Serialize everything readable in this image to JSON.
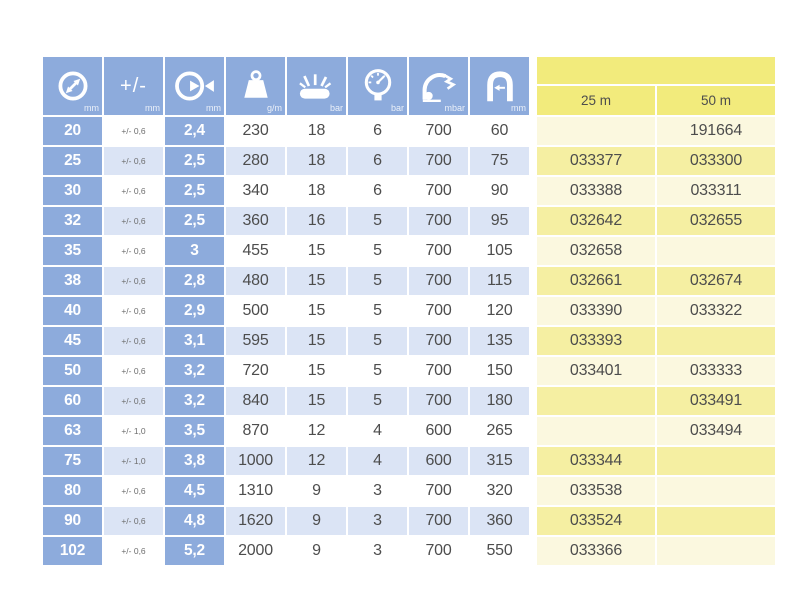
{
  "table": {
    "header": {
      "columns": [
        {
          "name": "inner-diameter",
          "unit": "mm"
        },
        {
          "name": "tolerance",
          "label": "+/-",
          "unit": "mm"
        },
        {
          "name": "wall-thickness",
          "unit": "mm"
        },
        {
          "name": "weight",
          "unit": "g/m"
        },
        {
          "name": "burst-pressure",
          "unit": "bar"
        },
        {
          "name": "working-pressure",
          "unit": "bar"
        },
        {
          "name": "vacuum",
          "unit": "mbar"
        },
        {
          "name": "bend-radius",
          "unit": "mm"
        }
      ],
      "length_columns": [
        "25 m",
        "50 m"
      ]
    },
    "rows": [
      {
        "id": "20",
        "tolerance": "+/- 0,6",
        "wall": "2,4",
        "weight": "230",
        "burst": "18",
        "pressure": "6",
        "vacuum": "700",
        "bend": "60",
        "code_25m": "",
        "code_50m": "191664"
      },
      {
        "id": "25",
        "tolerance": "+/- 0,6",
        "wall": "2,5",
        "weight": "280",
        "burst": "18",
        "pressure": "6",
        "vacuum": "700",
        "bend": "75",
        "code_25m": "033377",
        "code_50m": "033300"
      },
      {
        "id": "30",
        "tolerance": "+/- 0,6",
        "wall": "2,5",
        "weight": "340",
        "burst": "18",
        "pressure": "6",
        "vacuum": "700",
        "bend": "90",
        "code_25m": "033388",
        "code_50m": "033311"
      },
      {
        "id": "32",
        "tolerance": "+/- 0,6",
        "wall": "2,5",
        "weight": "360",
        "burst": "16",
        "pressure": "5",
        "vacuum": "700",
        "bend": "95",
        "code_25m": "032642",
        "code_50m": "032655"
      },
      {
        "id": "35",
        "tolerance": "+/- 0,6",
        "wall": "3",
        "weight": "455",
        "burst": "15",
        "pressure": "5",
        "vacuum": "700",
        "bend": "105",
        "code_25m": "032658",
        "code_50m": ""
      },
      {
        "id": "38",
        "tolerance": "+/- 0,6",
        "wall": "2,8",
        "weight": "480",
        "burst": "15",
        "pressure": "5",
        "vacuum": "700",
        "bend": "115",
        "code_25m": "032661",
        "code_50m": "032674"
      },
      {
        "id": "40",
        "tolerance": "+/- 0,6",
        "wall": "2,9",
        "weight": "500",
        "burst": "15",
        "pressure": "5",
        "vacuum": "700",
        "bend": "120",
        "code_25m": "033390",
        "code_50m": "033322"
      },
      {
        "id": "45",
        "tolerance": "+/- 0,6",
        "wall": "3,1",
        "weight": "595",
        "burst": "15",
        "pressure": "5",
        "vacuum": "700",
        "bend": "135",
        "code_25m": "033393",
        "code_50m": ""
      },
      {
        "id": "50",
        "tolerance": "+/- 0,6",
        "wall": "3,2",
        "weight": "720",
        "burst": "15",
        "pressure": "5",
        "vacuum": "700",
        "bend": "150",
        "code_25m": "033401",
        "code_50m": "033333"
      },
      {
        "id": "60",
        "tolerance": "+/- 0,6",
        "wall": "3,2",
        "weight": "840",
        "burst": "15",
        "pressure": "5",
        "vacuum": "700",
        "bend": "180",
        "code_25m": "",
        "code_50m": "033491"
      },
      {
        "id": "63",
        "tolerance": "+/- 1,0",
        "wall": "3,5",
        "weight": "870",
        "burst": "12",
        "pressure": "4",
        "vacuum": "600",
        "bend": "265",
        "code_25m": "",
        "code_50m": "033494"
      },
      {
        "id": "75",
        "tolerance": "+/- 1,0",
        "wall": "3,8",
        "weight": "1000",
        "burst": "12",
        "pressure": "4",
        "vacuum": "600",
        "bend": "315",
        "code_25m": "033344",
        "code_50m": ""
      },
      {
        "id": "80",
        "tolerance": "+/- 0,6",
        "wall": "4,5",
        "weight": "1310",
        "burst": "9",
        "pressure": "3",
        "vacuum": "700",
        "bend": "320",
        "code_25m": "033538",
        "code_50m": ""
      },
      {
        "id": "90",
        "tolerance": "+/- 0,6",
        "wall": "4,8",
        "weight": "1620",
        "burst": "9",
        "pressure": "3",
        "vacuum": "700",
        "bend": "360",
        "code_25m": "033524",
        "code_50m": ""
      },
      {
        "id": "102",
        "tolerance": "+/- 0,6",
        "wall": "5,2",
        "weight": "2000",
        "burst": "9",
        "pressure": "3",
        "vacuum": "700",
        "bend": "550",
        "code_25m": "033366",
        "code_50m": ""
      }
    ]
  },
  "colors": {
    "header_blue": "#8dabdc",
    "row_blue": "#dbe4f5",
    "row_white": "#ffffff",
    "yellow_header": "#f2eb7c",
    "yellow_row_light": "#fbf8df",
    "yellow_row_medium": "#f5efa2",
    "text_dark": "#4d4d4d"
  }
}
